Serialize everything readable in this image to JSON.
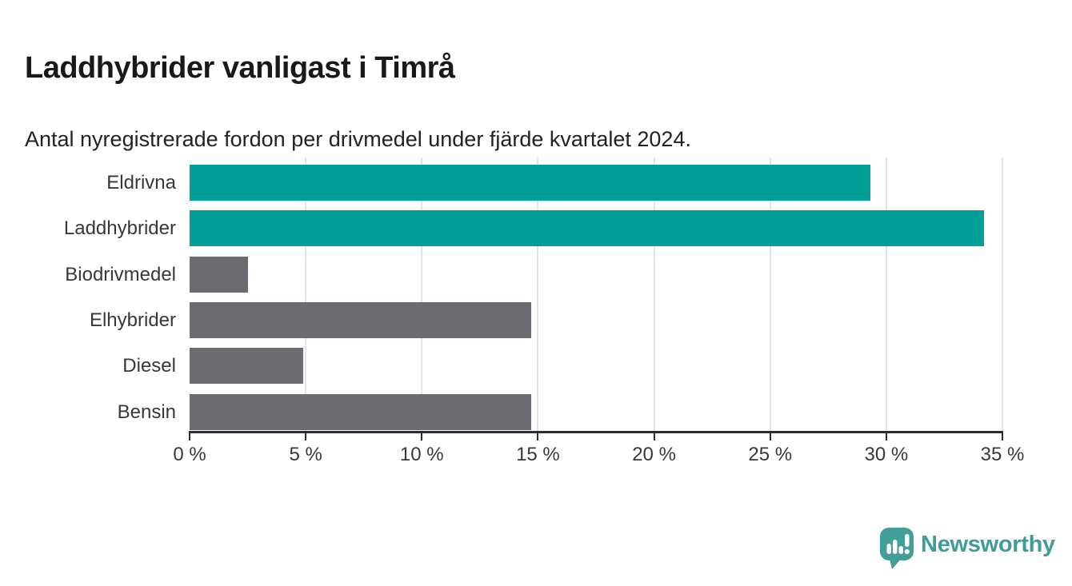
{
  "header": {
    "title": "Laddhybrider vanligast i Timrå",
    "subtitle": "Antal nyregistrerade fordon per drivmedel under fjärde kvartalet 2024."
  },
  "chart_data": {
    "type": "bar",
    "orientation": "horizontal",
    "title": "Laddhybrider vanligast i Timrå",
    "subtitle": "Antal nyregistrerade fordon per drivmedel under fjärde kvartalet 2024.",
    "categories": [
      "Eldrivna",
      "Laddhybrider",
      "Biodrivmedel",
      "Elhybrider",
      "Diesel",
      "Bensin"
    ],
    "values": [
      29.3,
      34.2,
      2.5,
      14.7,
      4.9,
      14.7
    ],
    "unit": "%",
    "xlim": [
      0,
      35
    ],
    "x_ticks": [
      0,
      5,
      10,
      15,
      20,
      25,
      30,
      35
    ],
    "x_tick_labels": [
      "0 %",
      "5 %",
      "10 %",
      "15 %",
      "20 %",
      "25 %",
      "30 %",
      "35 %"
    ],
    "grid": true,
    "legend": false,
    "bar_colors": [
      "#00a099",
      "#00a099",
      "#6c6b71",
      "#6c6b71",
      "#6c6b71",
      "#6c6b71"
    ],
    "highlight_color": "#00a099",
    "default_color": "#6c6b71"
  },
  "branding": {
    "name": "Newsworthy",
    "logo_icon": "speech-bubble-bar-chart-icon",
    "color": "#3f9d99"
  },
  "colors": {
    "background": "#ffffff",
    "title_text": "#191919",
    "label_text": "#383838",
    "axis": "#2e2e32",
    "gridline": "#e4e4e4"
  }
}
